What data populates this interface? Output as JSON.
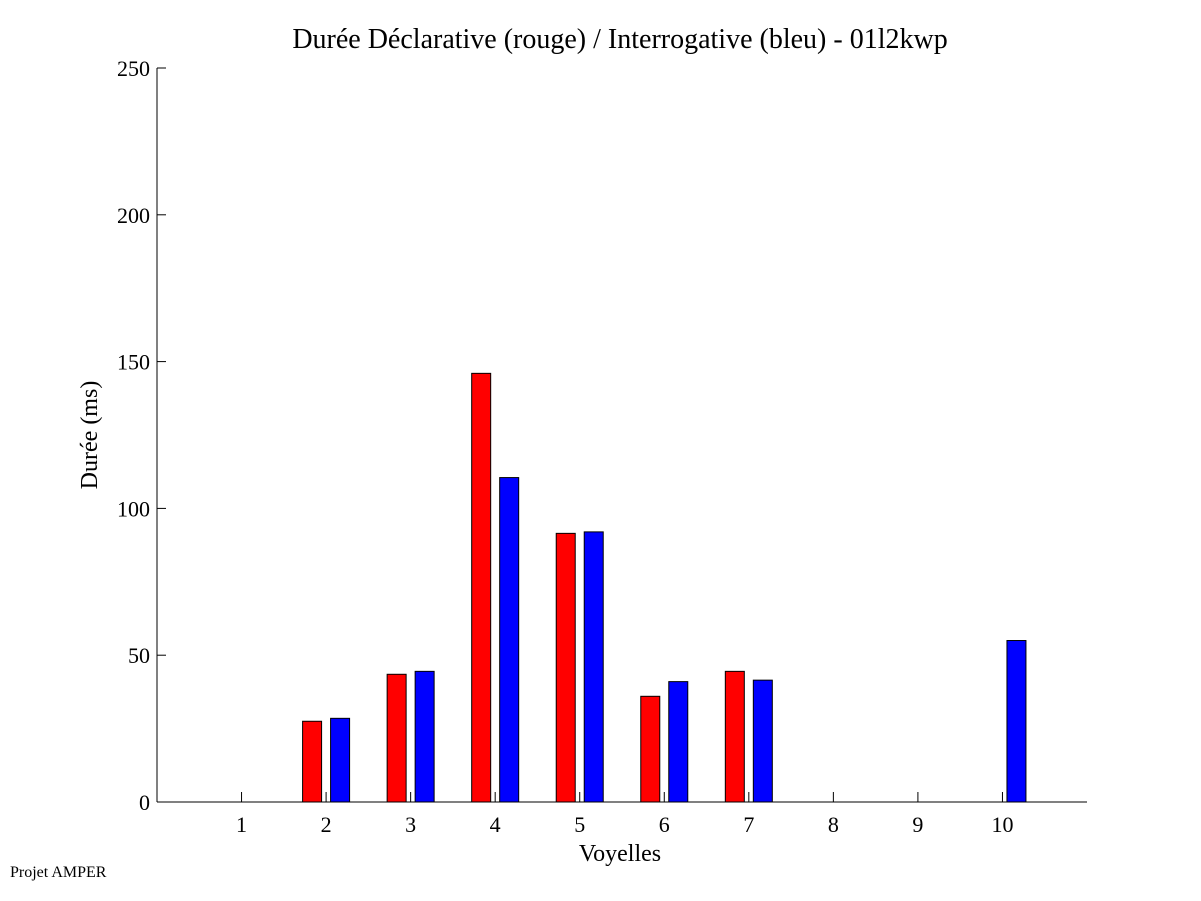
{
  "credit": "Projet AMPER",
  "colors": {
    "declarative": "#ff0000",
    "interrogative": "#0000ff",
    "axis": "#000000",
    "background": "#ffffff"
  },
  "chart_data": {
    "type": "bar",
    "title": "Durée Déclarative (rouge) / Interrogative (bleu) - 01l2kwp",
    "xlabel": "Voyelles",
    "ylabel": "Durée (ms)",
    "ylim": [
      0,
      250
    ],
    "yticks": [
      0,
      50,
      100,
      150,
      200,
      250
    ],
    "xlim": [
      0,
      11
    ],
    "categories": [
      "1",
      "2",
      "3",
      "4",
      "5",
      "6",
      "7",
      "8",
      "9",
      "10"
    ],
    "grid": false,
    "legend": "none",
    "series": [
      {
        "color": "#ff0000",
        "values": [
          null,
          27.5,
          43.5,
          146,
          91.5,
          36,
          44.5,
          null,
          null,
          null
        ]
      },
      {
        "color": "#0000ff",
        "values": [
          null,
          28.5,
          44.5,
          110.5,
          92,
          41,
          41.5,
          null,
          null,
          55
        ]
      }
    ]
  }
}
